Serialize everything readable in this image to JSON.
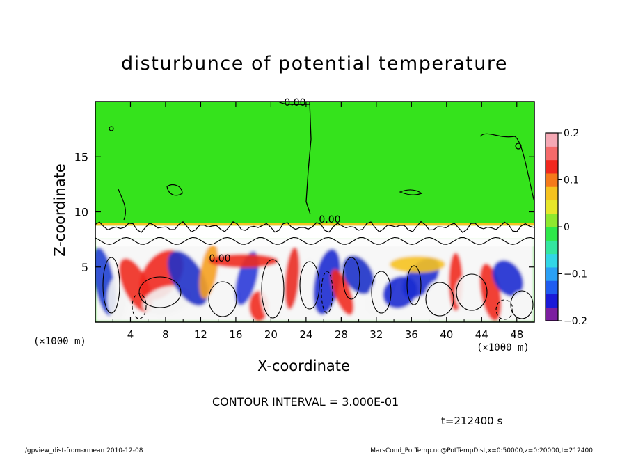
{
  "chart_data": {
    "type": "heatmap",
    "title": "disturbunce of potential temperature",
    "xlabel": "X-coordinate",
    "ylabel": "Z-coordinate",
    "x_unit_label_left": "(×1000 m)",
    "x_unit_label_right": "(×1000 m)",
    "x_ticks": [
      4,
      8,
      12,
      16,
      20,
      24,
      28,
      32,
      36,
      40,
      44,
      48
    ],
    "y_ticks": [
      5,
      10,
      15
    ],
    "xlim": [
      0,
      50
    ],
    "ylim": [
      0,
      20
    ],
    "colorbar": {
      "ticks": [
        0.2,
        0.1,
        0,
        -0.1,
        -0.2
      ],
      "tick_labels": [
        "0.2",
        "0.1",
        "0",
        "−0.1",
        "−0.2"
      ],
      "range": [
        -0.2,
        0.2
      ],
      "colors": [
        "#7c1fa0",
        "#1a1ad8",
        "#1f5cf0",
        "#2ba0f5",
        "#32d6e6",
        "#33e6a0",
        "#2ee84a",
        "#8ee82e",
        "#e6e62a",
        "#f5c21f",
        "#f57a1a",
        "#f0281e",
        "#f56a6a",
        "#f5a8b4"
      ]
    },
    "contour_labels": [
      "0.00",
      "0.00",
      "0.00"
    ],
    "layer_boundary_z": 9.0,
    "field_above_boundary": 0.0,
    "contour_interval_text": "CONTOUR INTERVAL = 3.000E-01",
    "time_text": "t=212400 s"
  },
  "footer": {
    "left": "./gpview_dist-from-xmean   2010-12-08",
    "right": "MarsCond_PotTemp.nc@PotTempDist,x=0:50000,z=0:20000,t=212400"
  }
}
